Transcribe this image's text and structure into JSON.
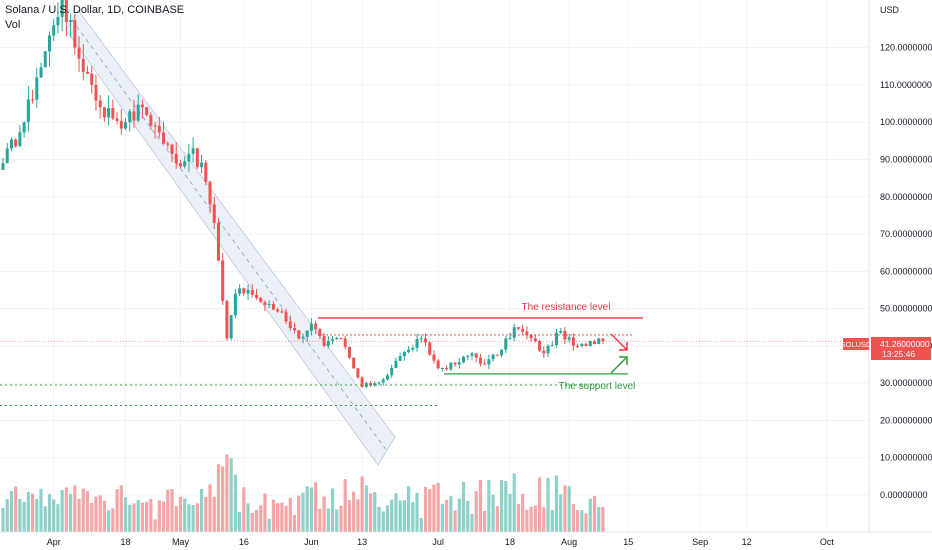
{
  "header": {
    "title": "Solana / U.S. Dollar, 1D, COINBASE",
    "volume_label": "Vol"
  },
  "axis": {
    "currency": "USD",
    "y_ticks": [
      "120.00000000",
      "110.00000000",
      "100.00000000",
      "90.00000000",
      "80.00000000",
      "70.00000000",
      "60.00000000",
      "50.00000000",
      "40.00000000",
      "30.00000000",
      "20.00000000",
      "10.00000000",
      "0.00000000"
    ],
    "x_ticks": [
      "Apr",
      "18",
      "May",
      "16",
      "Jun",
      "13",
      "Jul",
      "18",
      "Aug",
      "15",
      "Sep",
      "12",
      "Oct"
    ]
  },
  "price_tag": {
    "symbol": "SOLUSD",
    "price": "41.26000000",
    "countdown": "13:25:46",
    "color": "#ef5350"
  },
  "annotations": {
    "resistance_label": "The resistance level",
    "support_label": "The support level",
    "resistance_color": "#f23645",
    "support_color": "#2e9e3a"
  },
  "colors": {
    "up": "#26a69a",
    "down": "#ef5350",
    "up_vol": "#8fd1c9",
    "down_vol": "#f4a6a6",
    "channel": "#b2c4e0"
  },
  "chart_data": {
    "type": "candlestick",
    "title": "Solana / U.S. Dollar, 1D, COINBASE",
    "ylabel": "USD",
    "ylim": [
      -7,
      137
    ],
    "x_range": [
      "2022-03-20",
      "2022-10-04"
    ],
    "x_ticks": [
      "Apr",
      "18",
      "May",
      "16",
      "Jun",
      "13",
      "Jul",
      "18",
      "Aug",
      "15",
      "Sep",
      "12",
      "Oct"
    ],
    "levels": {
      "resistance": 47.5,
      "support": 32.5
    },
    "horizontal_dotted": [
      29.5,
      24.0
    ],
    "price_line": 41.26,
    "ohlc_keypoints": [
      {
        "date": "2022-03-20",
        "close": 89
      },
      {
        "date": "2022-03-25",
        "close": 100
      },
      {
        "date": "2022-03-28",
        "close": 112
      },
      {
        "date": "2022-04-01",
        "close": 126
      },
      {
        "date": "2022-04-03",
        "close": 134
      },
      {
        "date": "2022-04-06",
        "close": 120
      },
      {
        "date": "2022-04-09",
        "close": 113
      },
      {
        "date": "2022-04-12",
        "close": 104
      },
      {
        "date": "2022-04-18",
        "close": 100
      },
      {
        "date": "2022-04-22",
        "close": 104
      },
      {
        "date": "2022-04-25",
        "close": 99
      },
      {
        "date": "2022-04-30",
        "close": 89
      },
      {
        "date": "2022-05-04",
        "close": 93
      },
      {
        "date": "2022-05-07",
        "close": 84
      },
      {
        "date": "2022-05-09",
        "close": 73
      },
      {
        "date": "2022-05-11",
        "close": 52
      },
      {
        "date": "2022-05-12",
        "close": 42
      },
      {
        "date": "2022-05-14",
        "close": 54
      },
      {
        "date": "2022-05-17",
        "close": 55
      },
      {
        "date": "2022-05-21",
        "close": 51
      },
      {
        "date": "2022-05-25",
        "close": 49
      },
      {
        "date": "2022-05-29",
        "close": 42
      },
      {
        "date": "2022-06-01",
        "close": 46
      },
      {
        "date": "2022-06-04",
        "close": 40
      },
      {
        "date": "2022-06-08",
        "close": 42
      },
      {
        "date": "2022-06-11",
        "close": 34
      },
      {
        "date": "2022-06-13",
        "close": 29
      },
      {
        "date": "2022-06-16",
        "close": 30
      },
      {
        "date": "2022-06-18",
        "close": 31
      },
      {
        "date": "2022-06-21",
        "close": 36
      },
      {
        "date": "2022-06-24",
        "close": 39
      },
      {
        "date": "2022-06-27",
        "close": 42
      },
      {
        "date": "2022-07-01",
        "close": 34
      },
      {
        "date": "2022-07-05",
        "close": 35
      },
      {
        "date": "2022-07-09",
        "close": 38
      },
      {
        "date": "2022-07-12",
        "close": 35
      },
      {
        "date": "2022-07-16",
        "close": 39
      },
      {
        "date": "2022-07-19",
        "close": 45
      },
      {
        "date": "2022-07-23",
        "close": 42
      },
      {
        "date": "2022-07-26",
        "close": 38
      },
      {
        "date": "2022-07-30",
        "close": 44
      },
      {
        "date": "2022-08-02",
        "close": 40
      },
      {
        "date": "2022-08-05",
        "close": 40
      },
      {
        "date": "2022-08-08",
        "close": 42
      },
      {
        "date": "2022-08-09",
        "close": 41.26
      }
    ]
  }
}
